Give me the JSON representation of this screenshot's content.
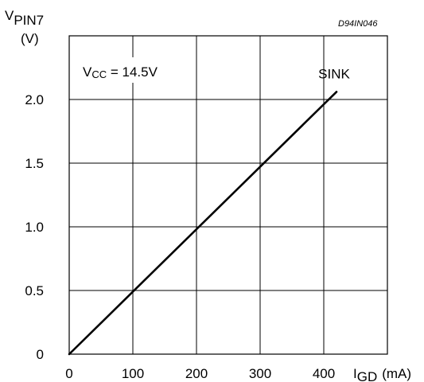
{
  "chart_data": {
    "type": "line",
    "code": "D94IN046",
    "ylabel_main": "V",
    "ylabel_sub": "PIN7",
    "ylabel_unit": "(V)",
    "xlabel_main": "I",
    "xlabel_sub": "GD",
    "xlabel_unit": "(mA)",
    "annotation_main": "V",
    "annotation_sub": "CC",
    "annotation_rest": " = 14.5V",
    "series": [
      {
        "name": "SINK",
        "x": [
          0,
          420
        ],
        "y": [
          0,
          2.06
        ]
      }
    ],
    "xlim": [
      0,
      500
    ],
    "ylim": [
      0,
      2.5
    ],
    "x_ticks": [
      0,
      100,
      200,
      300,
      400
    ],
    "x_tick_labels": [
      "0",
      "100",
      "200",
      "300",
      "400"
    ],
    "y_ticks": [
      0,
      0.5,
      1.0,
      1.5,
      2.0
    ],
    "y_tick_labels": [
      "0",
      "0.5",
      "1.0",
      "1.5",
      "2.0"
    ],
    "grid": true
  }
}
